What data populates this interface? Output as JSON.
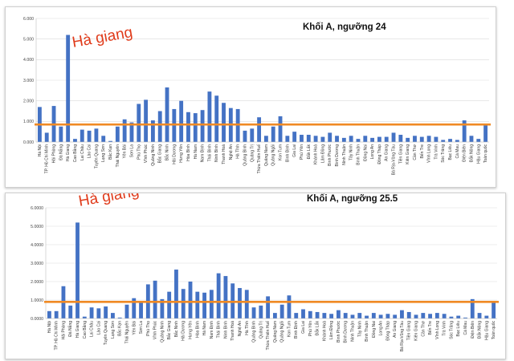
{
  "chart_data": [
    {
      "type": "bar",
      "title": "Khối A, ngưỡng 24",
      "annotation": "Hà giang",
      "ylim": [
        0,
        6
      ],
      "yticks": [
        "0.000",
        "1.000",
        "2.000",
        "3.000",
        "4.000",
        "5.000",
        "6.000"
      ],
      "threshold": 0.85,
      "colors": {
        "bar": "#4472c4",
        "threshold": "#f08a24",
        "grid": "#d9d9d9",
        "annotation": "#e03c1c"
      },
      "grid": true,
      "categories": [
        "Hà Nội",
        "TP. Hồ Chí Minh",
        "Hải Phòng",
        "Đà Nẵng",
        "Hà Giang",
        "Cao Bằng",
        "Lai Châu",
        "Lào Cai",
        "Tuyên Quang",
        "Lạng Sơn",
        "Bắc Kạn",
        "Thái Nguyên",
        "Yên Bái",
        "Sơn La",
        "Phú Thọ",
        "Vĩnh Phúc",
        "Quảng Ninh",
        "Bắc Giang",
        "Bắc Ninh",
        "Hải Dương",
        "Hưng Yên",
        "Hòa Bình",
        "Hà Nam",
        "Nam Định",
        "Thái Bình",
        "Ninh Bình",
        "Thanh Hoá",
        "Nghệ An",
        "Hà Tĩnh",
        "Quảng Bình",
        "Quảng Trị",
        "Thừa Thiên Huế",
        "Quảng Nam",
        "Quảng Ngãi",
        "Kon Tum",
        "Bình Định",
        "Gia Lai",
        "Phú Yên",
        "Đắk Lắk",
        "Khánh Hoà",
        "Lâm Đồng",
        "Bình Phước",
        "Bình Dương",
        "Ninh Thuận",
        "Tây Ninh",
        "Bình Thuận",
        "Đồng Nai",
        "Long An",
        "Đồng Tháp",
        "An Giang",
        "Bà Rịa-Vũng Tàu",
        "Tiền Giang",
        "Kiên Giang",
        "Cần Thơ",
        "Bến Tre",
        "Vĩnh Long",
        "Trà Vinh",
        "Sóc Trăng",
        "Bạc Liêu",
        "Cà Mau",
        "Điện Biên",
        "Đắk Nông",
        "Hậu Giang",
        "Toàn quốc"
      ],
      "values": [
        1.7,
        0.45,
        1.75,
        0.75,
        5.2,
        0.15,
        0.6,
        0.55,
        0.65,
        0.3,
        0.05,
        0.75,
        1.1,
        0.95,
        1.85,
        2.05,
        1.05,
        1.5,
        2.65,
        1.6,
        2.0,
        1.45,
        1.4,
        1.55,
        2.45,
        2.25,
        1.9,
        1.65,
        1.6,
        0.55,
        0.65,
        1.2,
        0.3,
        0.75,
        1.25,
        0.3,
        0.5,
        0.35,
        0.35,
        0.3,
        0.25,
        0.45,
        0.3,
        0.2,
        0.3,
        0.15,
        0.3,
        0.2,
        0.25,
        0.25,
        0.45,
        0.35,
        0.2,
        0.3,
        0.25,
        0.3,
        0.25,
        0.1,
        0.15,
        0.1,
        1.05,
        0.3,
        0.15,
        0.85
      ]
    },
    {
      "type": "bar",
      "title": "Khối A, ngưỡng 25.5",
      "annotation": "Hà giang",
      "ylim": [
        0,
        6
      ],
      "yticks": [
        "0.0000",
        "1.0000",
        "2.0000",
        "3.0000",
        "4.0000",
        "5.0000",
        "6.0000"
      ],
      "threshold": 0.9,
      "colors": {
        "bar": "#4472c4",
        "threshold": "#f08a24",
        "grid": "#d9d9d9",
        "annotation": "#e03c1c"
      },
      "grid": true,
      "categories": [
        "Hà Nội",
        "TP. Hồ Chí Minh",
        "Hải Phòng",
        "Đà Nẵng",
        "Hà Giang",
        "Cao Bằng",
        "Lai Châu",
        "Lào Cai",
        "Tuyên Quang",
        "Lạng Sơn",
        "Bắc Kạn",
        "Thái Nguyên",
        "Yên Bái",
        "Sơn La",
        "Phú Thọ",
        "Vĩnh Phúc",
        "Quảng Ninh",
        "Bắc Giang",
        "Bắc Ninh",
        "Hải Dương",
        "Hưng Yên",
        "Hòa Bình",
        "Hà Nam",
        "Nam Định",
        "Thái Bình",
        "Ninh Bình",
        "Thanh Hoá",
        "Nghệ An",
        "Hà Tĩnh",
        "Quảng Bình",
        "Quảng Trị",
        "Thừa Thiên Huế",
        "Quảng Nam",
        "Quảng Ngãi",
        "Kon Tum",
        "Bình Định",
        "Gia Lai",
        "Phú Yên",
        "Đắk Lắk",
        "Khánh Hoà",
        "Lâm Đồng",
        "Bình Phước",
        "Bình Dương",
        "Ninh Thuận",
        "Tây Ninh",
        "Bình Thuận",
        "Đồng Nai",
        "Long An",
        "Đồng Tháp",
        "An Giang",
        "Bà Rịa-Vũng Tàu",
        "Tiền Giang",
        "Kiên Giang",
        "Cần Thơ",
        "Bến Tre",
        "Vĩnh Long",
        "Trà Vinh",
        "Sóc Trăng",
        "Bạc Liêu",
        "Cà Mau",
        "Điện Biên",
        "Đắk Nông",
        "Hậu Giang",
        "Toàn quốc"
      ],
      "values": [
        0.4,
        0.4,
        1.75,
        0.7,
        5.2,
        0.1,
        0.6,
        0.55,
        0.65,
        0.3,
        0.05,
        0.75,
        1.1,
        0.95,
        1.85,
        2.05,
        1.05,
        1.45,
        2.65,
        1.6,
        2.0,
        1.45,
        1.4,
        1.55,
        2.45,
        2.3,
        1.9,
        1.65,
        1.55,
        0.6,
        0.7,
        1.2,
        0.3,
        0.75,
        1.25,
        0.3,
        0.5,
        0.4,
        0.35,
        0.3,
        0.25,
        0.45,
        0.3,
        0.2,
        0.3,
        0.15,
        0.3,
        0.2,
        0.25,
        0.2,
        0.45,
        0.35,
        0.2,
        0.3,
        0.25,
        0.3,
        0.25,
        0.1,
        0.15,
        0.05,
        1.05,
        0.3,
        0.15,
        0.9
      ]
    }
  ]
}
